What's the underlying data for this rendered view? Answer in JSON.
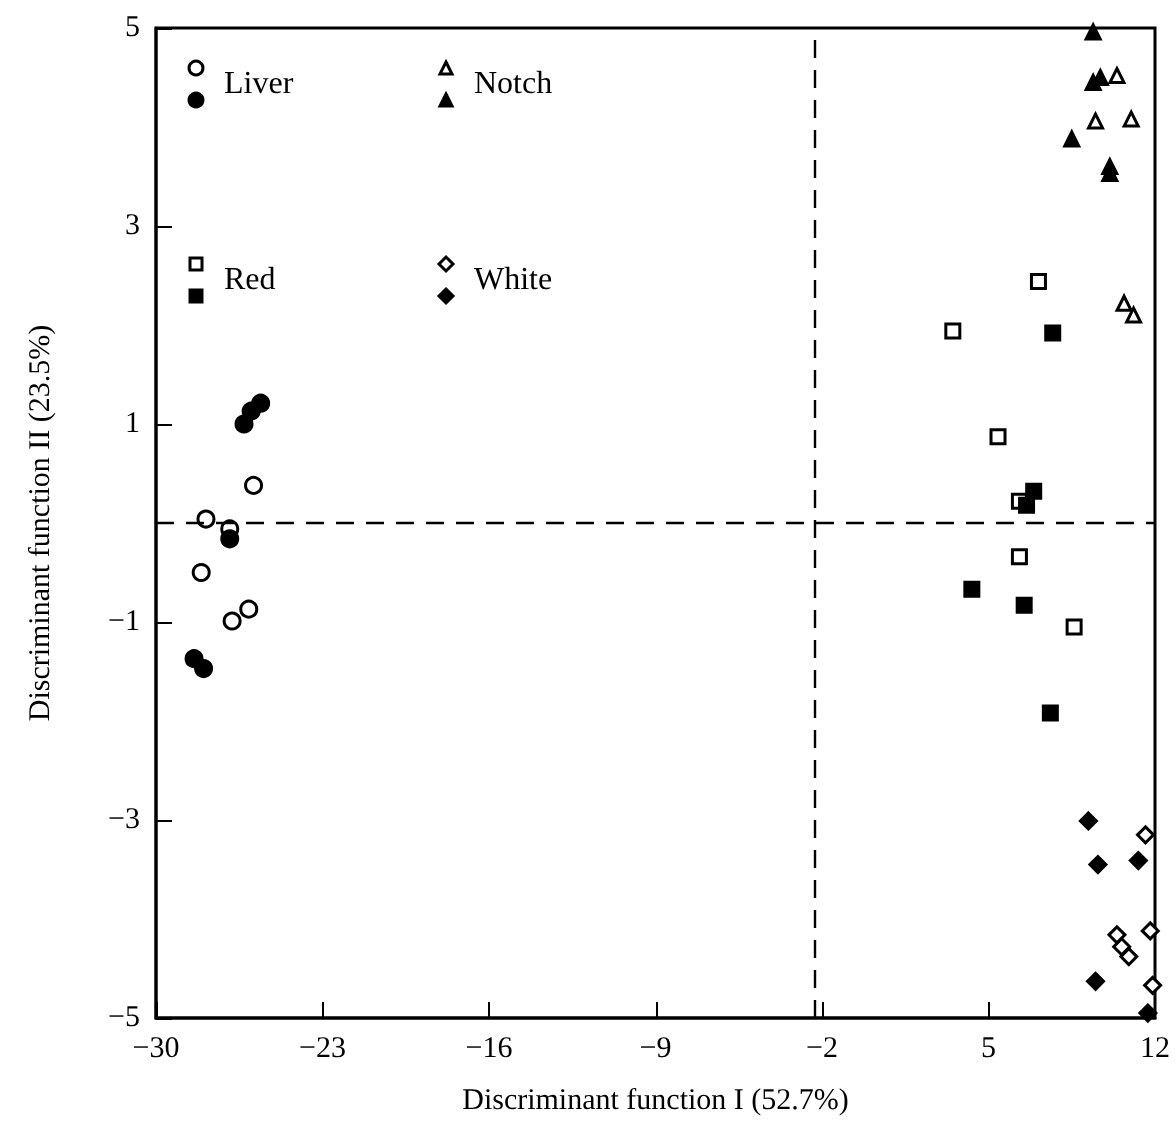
{
  "chart_data": {
    "type": "scatter",
    "xlabel": "Discriminant function I (52.7%)",
    "ylabel": "Discriminant function II (23.5%)",
    "xlim": [
      -30,
      12
    ],
    "xticks": [
      -30,
      -23,
      -16,
      -9,
      -2,
      5,
      12
    ],
    "ylim": [
      -5,
      5
    ],
    "yticks": [
      -5,
      -3,
      -1,
      1,
      3,
      5
    ],
    "grid": false,
    "legend": "top left",
    "ref_lines": [
      {
        "axis": "x",
        "value": -2.3,
        "line_style": "dashed",
        "color": "#000000"
      },
      {
        "axis": "y",
        "value": 0,
        "line_style": "dashed",
        "color": "#000000"
      }
    ],
    "series": [
      {
        "name": "Liver",
        "marker": "circle",
        "color": "#ffffff",
        "x": [
          -25.9,
          -27.9,
          -26.9,
          -28.1,
          -26.8,
          -26.1
        ],
        "values": [
          0.38,
          0.04,
          -0.06,
          -0.5,
          -0.99,
          -0.87
        ]
      },
      {
        "marker": "circle",
        "color": "#000000",
        "x": [
          -26.3,
          -26.0,
          -25.6,
          -26.9,
          -28.4,
          -28.0
        ],
        "values": [
          1.0,
          1.13,
          1.21,
          -0.16,
          -1.37,
          -1.47
        ]
      },
      {
        "name": "Notch",
        "marker": "triangle",
        "color": "#ffffff",
        "x": [
          10.4,
          9.5,
          11.0,
          10.7,
          11.1
        ],
        "values": [
          4.52,
          4.06,
          4.08,
          2.22,
          2.1
        ]
      },
      {
        "marker": "triangle",
        "color": "#000000",
        "x": [
          9.4,
          9.4,
          9.7,
          8.5,
          10.1,
          10.1
        ],
        "values": [
          4.96,
          4.45,
          4.5,
          3.88,
          3.6,
          3.53
        ]
      },
      {
        "name": "Red",
        "marker": "square",
        "color": "#ffffff",
        "x": [
          7.1,
          3.5,
          5.4,
          6.3,
          6.3,
          8.6
        ],
        "values": [
          2.44,
          1.94,
          0.87,
          0.22,
          -0.34,
          -1.05
        ]
      },
      {
        "marker": "square",
        "color": "#000000",
        "x": [
          7.7,
          6.9,
          6.6,
          4.3,
          6.5,
          7.6
        ],
        "values": [
          1.92,
          0.32,
          0.18,
          -0.67,
          -0.83,
          -1.92
        ]
      },
      {
        "name": "White",
        "marker": "diamond",
        "color": "#ffffff",
        "x": [
          11.6,
          10.4,
          10.6,
          10.9,
          11.8,
          11.9
        ],
        "values": [
          -3.15,
          -4.16,
          -4.28,
          -4.38,
          -4.12,
          -4.67
        ]
      },
      {
        "marker": "diamond",
        "color": "#000000",
        "x": [
          9.2,
          9.6,
          11.3,
          9.5,
          11.7
        ],
        "values": [
          -3.01,
          -3.45,
          -3.41,
          -4.63,
          -4.95
        ]
      }
    ]
  }
}
